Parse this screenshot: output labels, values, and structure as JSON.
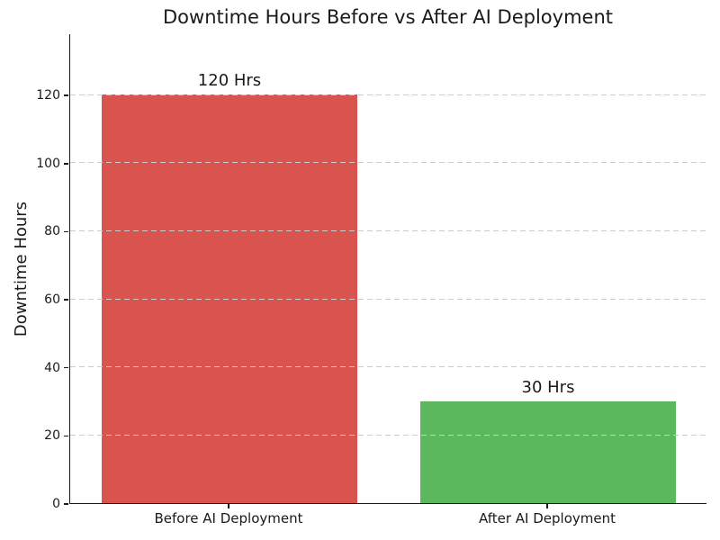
{
  "chart_data": {
    "type": "bar",
    "title": "Downtime Hours Before vs After AI Deployment",
    "xlabel": "",
    "ylabel": "Downtime Hours",
    "categories": [
      "Before AI Deployment",
      "After AI Deployment"
    ],
    "values": [
      120,
      30
    ],
    "bar_labels": [
      "120 Hrs",
      "30 Hrs"
    ],
    "bar_colors": [
      "#d9534f",
      "#5cb85c"
    ],
    "ylim": [
      0,
      138
    ],
    "yticks": [
      0,
      20,
      40,
      60,
      80,
      100,
      120
    ],
    "bar_width_fraction": 0.8,
    "grid": "horizontal-dashed",
    "grid_color": "#cbcbcb",
    "legend": "none",
    "background_color": "#ffffff",
    "text_color": "#1a1a1a"
  }
}
